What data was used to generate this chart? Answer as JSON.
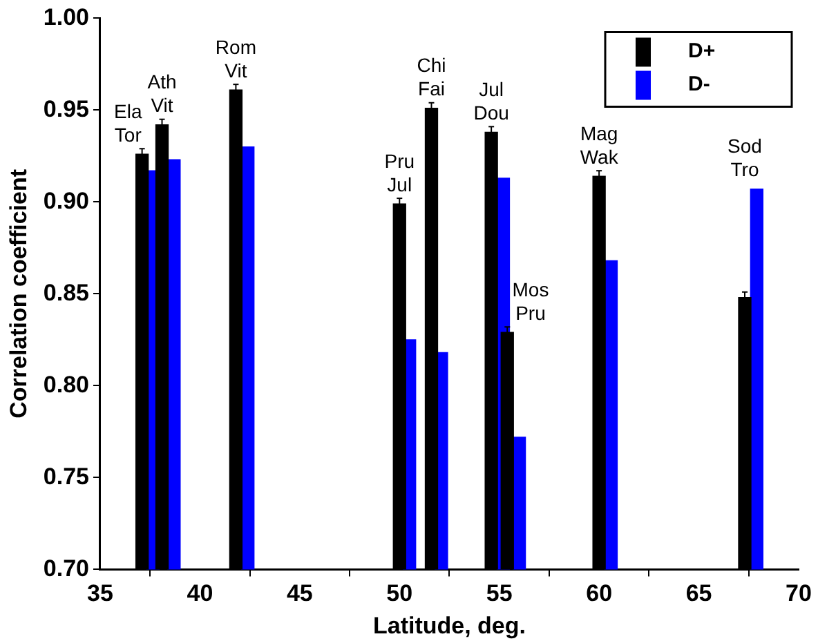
{
  "chart_data": {
    "type": "bar",
    "xlabel": "Latitude, deg.",
    "ylabel": "Correlation coefficient",
    "xlim": [
      35,
      70
    ],
    "xticks": [
      35,
      40,
      45,
      50,
      55,
      60,
      65,
      70
    ],
    "ylim": [
      0.7,
      1.0
    ],
    "yticks": [
      {
        "value": 0.7,
        "label": "0.70"
      },
      0.75,
      {
        "value": 0.8,
        "label": "0.80"
      },
      0.85,
      {
        "value": 0.9,
        "label": "0.90"
      },
      0.95,
      {
        "value": 1.0,
        "label": "1.00"
      }
    ],
    "grid": false,
    "legend": "top right",
    "series": [
      {
        "name": "D+",
        "color": "#000000",
        "x": [
          37.1,
          38.1,
          41.8,
          50.0,
          51.6,
          54.6,
          55.4,
          60.0,
          67.3
        ],
        "values": [
          0.926,
          0.942,
          0.961,
          0.899,
          0.951,
          0.938,
          0.829,
          0.914,
          0.848
        ],
        "errors": [
          0.003,
          0.003,
          0.003,
          0.003,
          0.003,
          0.003,
          0.003,
          0.003,
          0.003
        ]
      },
      {
        "name": "D-",
        "color": "#0000ff",
        "x": [
          37.65,
          38.7,
          42.4,
          50.5,
          52.1,
          55.2,
          56.0,
          60.6,
          67.9
        ],
        "values": [
          0.917,
          0.923,
          0.93,
          0.825,
          0.818,
          0.913,
          0.772,
          0.868,
          0.907
        ]
      }
    ],
    "annotations": [
      {
        "text": "Ela Tor",
        "x": 37.1,
        "y": 0.926
      },
      {
        "text": "Ath Vit",
        "x": 38.1,
        "y": 0.942
      },
      {
        "text": "Rom Vit",
        "x": 41.8,
        "y": 0.961
      },
      {
        "text": "Pru Jul",
        "x": 50.0,
        "y": 0.899
      },
      {
        "text": "Chi Fai",
        "x": 51.6,
        "y": 0.951
      },
      {
        "text": "Jul Dou",
        "x": 54.6,
        "y": 0.938
      },
      {
        "text": "Mos Pru",
        "x": 55.4,
        "y": 0.829
      },
      {
        "text": "Mag Wak",
        "x": 60.0,
        "y": 0.914
      },
      {
        "text": "Sod Tro",
        "x": 67.3,
        "y": 0.907
      }
    ]
  }
}
